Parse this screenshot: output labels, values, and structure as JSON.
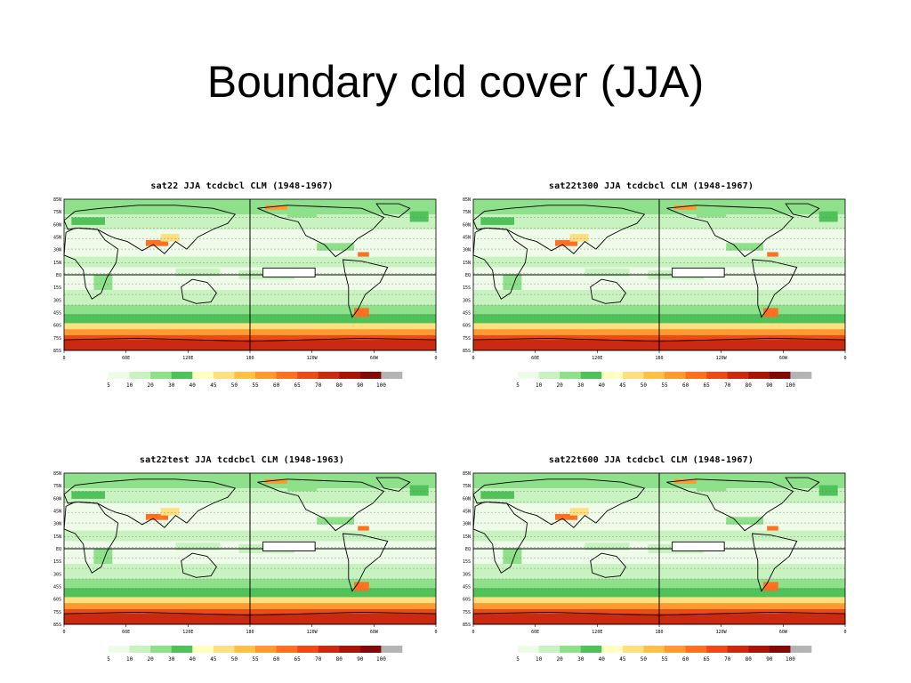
{
  "slide": {
    "title": "Boundary cld cover (JJA)"
  },
  "colors": {
    "land_outline": "#000000",
    "background": "#ffffff"
  },
  "map": {
    "lat_labels": [
      "85N",
      "75N",
      "60N",
      "45N",
      "30N",
      "15N",
      "EQ",
      "15S",
      "30S",
      "45S",
      "60S",
      "75S",
      "85S"
    ],
    "lon_labels": [
      "0",
      "60E",
      "120E",
      "180",
      "120W",
      "60W",
      "0"
    ]
  },
  "colorbar": {
    "labels": [
      "5",
      "10",
      "20",
      "30",
      "40",
      "45",
      "50",
      "55",
      "60",
      "65",
      "70",
      "80",
      "90",
      "100"
    ],
    "colors": [
      "#eefbe9",
      "#c8f3c0",
      "#8fe08a",
      "#4fc25a",
      "#ffffc0",
      "#ffe080",
      "#ffc048",
      "#ff9a30",
      "#ff7020",
      "#ee4a18",
      "#cc2a10",
      "#a81408",
      "#800a08",
      "#b4b4b4"
    ]
  },
  "panels": [
    {
      "title": "sat22 JJA tcdcbcl CLM (1948-1967)"
    },
    {
      "title": "sat22t300 JJA tcdcbcl CLM (1948-1967)"
    },
    {
      "title": "sat22test JJA tcdcbcl CLM (1948-1963)"
    },
    {
      "title": "sat22t600 JJA tcdcbcl CLM (1948-1967)"
    }
  ]
}
